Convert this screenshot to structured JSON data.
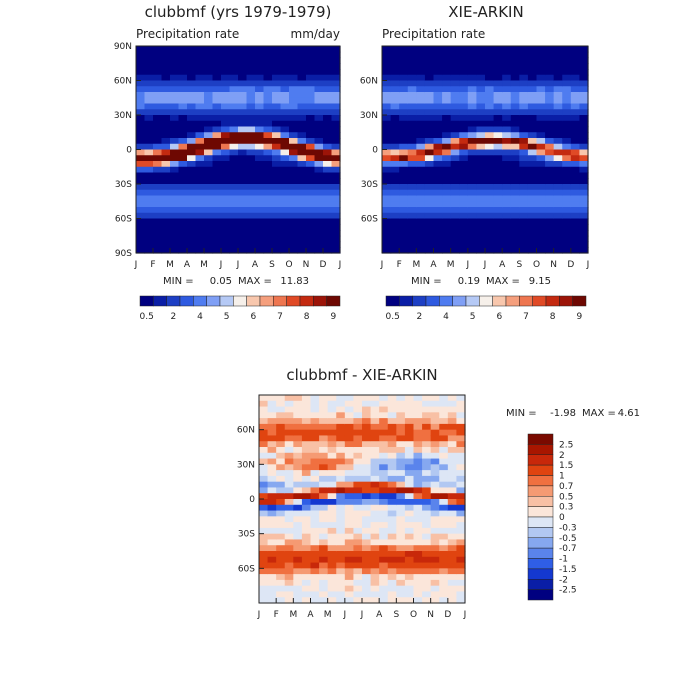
{
  "chart_data": [
    {
      "type": "heatmap",
      "title": "clubbmf (yrs 1979-1979)",
      "subtitle_left": "Precipitation rate",
      "subtitle_right": "mm/day",
      "x_ticks": [
        "J",
        "F",
        "M",
        "A",
        "M",
        "J",
        "J",
        "A",
        "S",
        "O",
        "N",
        "D",
        "J"
      ],
      "y_ticks": [
        "90N",
        "60N",
        "30N",
        "0",
        "30S",
        "60S",
        "90S"
      ],
      "ylim": [
        -90,
        90
      ],
      "stats": {
        "min_label": "MIN =",
        "min": "0.05",
        "max_label": "MAX =",
        "max": "11.83"
      },
      "itcz": {
        "peak_value": 11,
        "lat_jan": -8,
        "lat_jul": 10,
        "width": 8
      },
      "colorbar_labels": [
        "0.5",
        "2",
        "4",
        "5",
        "6",
        "7",
        "8",
        "9"
      ],
      "colorbar_colors": [
        "#000080",
        "#0a1ea6",
        "#1d3fc4",
        "#2e5ae0",
        "#4f7cf0",
        "#7f9ff5",
        "#b5c9f5",
        "#f6f0ea",
        "#f8c7ad",
        "#f59f7d",
        "#ee7650",
        "#e04a26",
        "#c42a10",
        "#9c1408",
        "#6e0802"
      ]
    },
    {
      "type": "heatmap",
      "title": "XIE-ARKIN",
      "subtitle_left": "Precipitation rate",
      "x_ticks": [
        "J",
        "F",
        "M",
        "A",
        "M",
        "J",
        "J",
        "A",
        "S",
        "O",
        "N",
        "D",
        "J"
      ],
      "y_ticks": [
        "60N",
        "30N",
        "0",
        "30S",
        "60S"
      ],
      "ylim": [
        -90,
        90
      ],
      "stats": {
        "min_label": "MIN =",
        "min": "0.19",
        "max_label": "MAX =",
        "max": "9.15"
      },
      "itcz": {
        "peak_value": 9,
        "lat_jan": -6,
        "lat_jul": 8,
        "width": 7
      },
      "colorbar_labels": [
        "0.5",
        "2",
        "4",
        "5",
        "6",
        "7",
        "8",
        "9"
      ],
      "colorbar_colors": [
        "#000080",
        "#0a1ea6",
        "#1d3fc4",
        "#2e5ae0",
        "#4f7cf0",
        "#7f9ff5",
        "#b5c9f5",
        "#f6f0ea",
        "#f8c7ad",
        "#f59f7d",
        "#ee7650",
        "#e04a26",
        "#c42a10",
        "#9c1408",
        "#6e0802"
      ]
    },
    {
      "type": "heatmap",
      "title": "clubbmf - XIE-ARKIN",
      "x_ticks": [
        "J",
        "F",
        "M",
        "A",
        "M",
        "J",
        "J",
        "A",
        "S",
        "O",
        "N",
        "D",
        "J"
      ],
      "y_ticks": [
        "60N",
        "30N",
        "0",
        "30S",
        "60S"
      ],
      "ylim": [
        -90,
        90
      ],
      "stats": {
        "min_label": "MIN =",
        "min": "-1.98",
        "max_label": "MAX =",
        "max": "4.61"
      },
      "colorbar_labels": [
        "2.5",
        "2",
        "1.5",
        "1",
        "0.7",
        "0.5",
        "0.3",
        "0",
        "-0.3",
        "-0.5",
        "-0.7",
        "-1",
        "-1.5",
        "-2",
        "-2.5"
      ],
      "colorbar_colors": [
        "#7a0a00",
        "#a81600",
        "#c8280a",
        "#e04410",
        "#f07040",
        "#f59a73",
        "#f8c0a5",
        "#fbe6da",
        "#dde6f5",
        "#b2c8f2",
        "#86a8f0",
        "#5a84ec",
        "#2f5ee6",
        "#1438d0",
        "#0a1ea6",
        "#000080"
      ]
    }
  ]
}
